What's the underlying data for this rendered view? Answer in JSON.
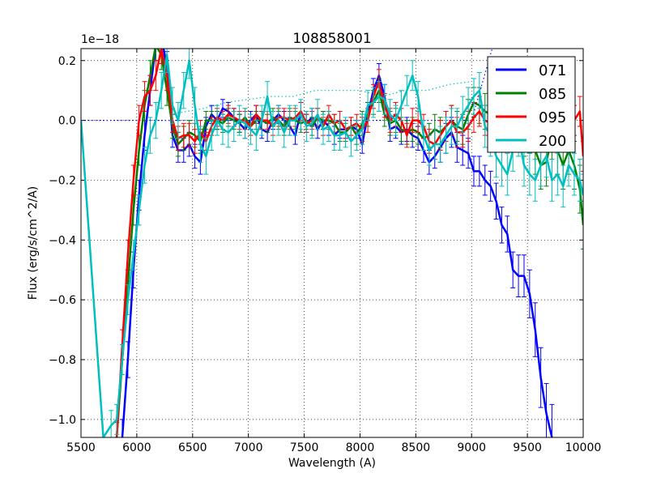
{
  "chart_data": {
    "type": "line",
    "title": "108858001",
    "xlabel": "Wavelength (A)",
    "ylabel": "Flux (erg/s/cm^2/A)",
    "offset_text": "1e−18",
    "xlim": [
      5500,
      10000
    ],
    "ylim": [
      -1.06,
      0.24
    ],
    "xticks": [
      5500,
      6000,
      6500,
      7000,
      7500,
      8000,
      8500,
      9000,
      9500,
      10000
    ],
    "yticks": [
      -1.0,
      -0.8,
      -0.6,
      -0.4,
      -0.2,
      0.0,
      0.2
    ],
    "ytick_labels": [
      "−1.0",
      "−0.8",
      "−0.6",
      "−0.4",
      "−0.2",
      "0.0",
      "0.2"
    ],
    "grid": true,
    "legend_position": "top-right",
    "series": [
      {
        "name": "071",
        "color": "#0000ff",
        "x": [
          5870,
          5920,
          5970,
          6020,
          6070,
          6120,
          6170,
          6220,
          6270,
          6320,
          6370,
          6420,
          6470,
          6520,
          6570,
          6620,
          6670,
          6720,
          6770,
          6820,
          6870,
          6920,
          6970,
          7020,
          7070,
          7120,
          7170,
          7220,
          7270,
          7320,
          7370,
          7420,
          7470,
          7520,
          7570,
          7620,
          7670,
          7720,
          7770,
          7820,
          7870,
          7920,
          7970,
          8020,
          8070,
          8120,
          8170,
          8220,
          8270,
          8320,
          8370,
          8420,
          8470,
          8520,
          8570,
          8620,
          8670,
          8720,
          8770,
          8820,
          8870,
          8920,
          8970,
          9020,
          9070,
          9120,
          9170,
          9220,
          9270,
          9320,
          9370,
          9420,
          9470,
          9520,
          9570,
          9620,
          9670,
          9720
        ],
        "y": [
          -1.06,
          -0.8,
          -0.5,
          -0.25,
          -0.05,
          0.1,
          0.25,
          0.28,
          0.18,
          -0.05,
          -0.1,
          -0.1,
          -0.08,
          -0.12,
          -0.14,
          -0.02,
          0.02,
          0.0,
          0.04,
          0.03,
          0.01,
          -0.01,
          -0.03,
          0.0,
          0.02,
          -0.03,
          -0.04,
          0.0,
          0.02,
          0.0,
          -0.02,
          -0.05,
          0.03,
          -0.01,
          0.01,
          -0.03,
          0.0,
          -0.02,
          -0.05,
          -0.03,
          -0.03,
          -0.02,
          -0.03,
          -0.08,
          0.02,
          0.1,
          0.15,
          0.08,
          -0.03,
          -0.02,
          -0.04,
          -0.03,
          -0.05,
          -0.06,
          -0.1,
          -0.14,
          -0.12,
          -0.09,
          -0.06,
          -0.04,
          -0.09,
          -0.1,
          -0.11,
          -0.17,
          -0.17,
          -0.2,
          -0.22,
          -0.27,
          -0.35,
          -0.38,
          -0.5,
          -0.52,
          -0.52,
          -0.58,
          -0.7,
          -0.86,
          -0.98,
          -1.06
        ],
        "err": [
          0.06,
          0.06,
          0.06,
          0.05,
          0.05,
          0.05,
          0.05,
          0.05,
          0.05,
          0.04,
          0.04,
          0.04,
          0.04,
          0.04,
          0.04,
          0.03,
          0.03,
          0.03,
          0.03,
          0.03,
          0.03,
          0.03,
          0.03,
          0.03,
          0.03,
          0.03,
          0.03,
          0.03,
          0.03,
          0.03,
          0.03,
          0.03,
          0.03,
          0.03,
          0.03,
          0.03,
          0.03,
          0.03,
          0.03,
          0.03,
          0.03,
          0.03,
          0.03,
          0.03,
          0.04,
          0.04,
          0.04,
          0.04,
          0.04,
          0.04,
          0.04,
          0.04,
          0.04,
          0.04,
          0.04,
          0.04,
          0.04,
          0.05,
          0.05,
          0.05,
          0.05,
          0.05,
          0.05,
          0.05,
          0.05,
          0.05,
          0.05,
          0.06,
          0.06,
          0.06,
          0.06,
          0.07,
          0.07,
          0.08,
          0.09,
          0.1,
          0.1,
          0.11
        ]
      },
      {
        "name": "085",
        "color": "#008000",
        "x": [
          5820,
          5870,
          5920,
          5970,
          6020,
          6070,
          6120,
          6170,
          6220,
          6270,
          6320,
          6370,
          6420,
          6470,
          6520,
          6570,
          6620,
          6670,
          6720,
          6770,
          6820,
          6870,
          6920,
          6970,
          7020,
          7070,
          7120,
          7170,
          7220,
          7270,
          7320,
          7370,
          7420,
          7470,
          7520,
          7570,
          7620,
          7670,
          7720,
          7770,
          7820,
          7870,
          7920,
          7970,
          8020,
          8070,
          8120,
          8170,
          8220,
          8270,
          8320,
          8370,
          8420,
          8470,
          8520,
          8570,
          8620,
          8670,
          8720,
          8770,
          8820,
          8870,
          8920,
          8970,
          9020,
          9070,
          9120,
          9170,
          9220,
          9270,
          9320,
          9370,
          9420,
          9470,
          9520,
          9570,
          9620,
          9670,
          9720,
          9770,
          9820,
          9870,
          9920,
          9970,
          10000
        ],
        "y": [
          -1.06,
          -0.8,
          -0.55,
          -0.3,
          -0.1,
          0.05,
          0.15,
          0.25,
          0.22,
          0.1,
          -0.02,
          -0.08,
          -0.06,
          -0.04,
          -0.05,
          -0.07,
          0.0,
          0.0,
          0.0,
          -0.01,
          0.01,
          0.0,
          -0.01,
          0.01,
          -0.02,
          0.0,
          0.0,
          -0.01,
          0.01,
          0.0,
          -0.02,
          0.01,
          0.0,
          -0.01,
          0.0,
          -0.02,
          0.01,
          0.0,
          0.0,
          -0.01,
          -0.04,
          -0.04,
          -0.02,
          -0.05,
          -0.01,
          0.02,
          0.06,
          0.1,
          0.02,
          -0.01,
          0.0,
          -0.03,
          -0.04,
          -0.03,
          -0.04,
          -0.06,
          -0.05,
          -0.03,
          -0.04,
          -0.02,
          0.0,
          -0.02,
          -0.03,
          0.02,
          0.06,
          0.05,
          0.03,
          0.02,
          0.0,
          0.02,
          0.05,
          0.0,
          -0.02,
          -0.05,
          -0.04,
          -0.1,
          -0.15,
          -0.14,
          -0.05,
          -0.1,
          -0.15,
          -0.1,
          -0.15,
          -0.23,
          -0.35
        ],
        "err": [
          0.05,
          0.05,
          0.05,
          0.05,
          0.05,
          0.05,
          0.05,
          0.05,
          0.05,
          0.05,
          0.04,
          0.04,
          0.04,
          0.04,
          0.04,
          0.04,
          0.03,
          0.03,
          0.03,
          0.03,
          0.03,
          0.03,
          0.03,
          0.03,
          0.03,
          0.03,
          0.03,
          0.03,
          0.03,
          0.03,
          0.03,
          0.03,
          0.03,
          0.03,
          0.03,
          0.03,
          0.03,
          0.03,
          0.03,
          0.03,
          0.03,
          0.03,
          0.03,
          0.03,
          0.04,
          0.04,
          0.04,
          0.04,
          0.04,
          0.04,
          0.04,
          0.04,
          0.04,
          0.04,
          0.04,
          0.04,
          0.04,
          0.05,
          0.05,
          0.05,
          0.05,
          0.05,
          0.05,
          0.05,
          0.05,
          0.06,
          0.06,
          0.06,
          0.06,
          0.06,
          0.06,
          0.07,
          0.07,
          0.07,
          0.07,
          0.08,
          0.08,
          0.08,
          0.08,
          0.08,
          0.08,
          0.08,
          0.08,
          0.08,
          0.08
        ]
      },
      {
        "name": "095",
        "color": "#ff0000",
        "x": [
          5820,
          5870,
          5920,
          5970,
          6020,
          6070,
          6120,
          6170,
          6220,
          6270,
          6320,
          6370,
          6420,
          6470,
          6520,
          6570,
          6620,
          6670,
          6720,
          6770,
          6820,
          6870,
          6920,
          6970,
          7020,
          7070,
          7120,
          7170,
          7220,
          7270,
          7320,
          7370,
          7420,
          7470,
          7520,
          7570,
          7620,
          7670,
          7720,
          7770,
          7820,
          7870,
          7920,
          7970,
          8020,
          8070,
          8120,
          8170,
          8220,
          8270,
          8320,
          8370,
          8420,
          8470,
          8520,
          8570,
          8620,
          8670,
          8720,
          8770,
          8820,
          8870,
          8920,
          8970,
          9020,
          9070,
          9120,
          9170,
          9220,
          9270,
          9320,
          9370,
          9420,
          9470,
          9520,
          9570,
          9620,
          9670,
          9720,
          9770,
          9820,
          9870,
          9920,
          9970,
          10000
        ],
        "y": [
          -1.06,
          -0.75,
          -0.45,
          -0.2,
          0.0,
          0.08,
          0.1,
          0.15,
          0.24,
          0.15,
          0.0,
          -0.06,
          -0.05,
          -0.05,
          -0.07,
          -0.04,
          -0.07,
          -0.02,
          0.01,
          0.0,
          0.02,
          0.01,
          0.0,
          0.0,
          -0.02,
          0.02,
          0.0,
          0.0,
          -0.02,
          0.01,
          0.01,
          0.0,
          0.01,
          0.03,
          -0.01,
          0.0,
          0.01,
          -0.02,
          0.02,
          -0.01,
          0.0,
          -0.03,
          -0.02,
          -0.01,
          -0.03,
          0.0,
          0.08,
          0.13,
          0.05,
          0.0,
          0.02,
          0.0,
          -0.05,
          0.0,
          0.0,
          -0.02,
          -0.07,
          -0.08,
          -0.05,
          -0.02,
          0.0,
          -0.04,
          -0.04,
          -0.02,
          0.01,
          0.03,
          0.0,
          -0.01,
          -0.05,
          -0.02,
          0.0,
          -0.02,
          -0.05,
          -0.02,
          -0.04,
          -0.01,
          0.0,
          0.02,
          0.03,
          0.02,
          -0.01,
          -0.05,
          0.0,
          0.03,
          -0.12
        ],
        "err": [
          0.05,
          0.05,
          0.05,
          0.05,
          0.05,
          0.05,
          0.05,
          0.05,
          0.05,
          0.05,
          0.04,
          0.04,
          0.04,
          0.04,
          0.04,
          0.04,
          0.03,
          0.03,
          0.03,
          0.03,
          0.03,
          0.03,
          0.03,
          0.03,
          0.03,
          0.03,
          0.03,
          0.03,
          0.03,
          0.03,
          0.03,
          0.03,
          0.03,
          0.03,
          0.03,
          0.03,
          0.03,
          0.03,
          0.03,
          0.03,
          0.03,
          0.03,
          0.03,
          0.03,
          0.04,
          0.04,
          0.04,
          0.04,
          0.04,
          0.04,
          0.04,
          0.04,
          0.04,
          0.04,
          0.04,
          0.04,
          0.04,
          0.05,
          0.05,
          0.05,
          0.05,
          0.05,
          0.05,
          0.05,
          0.05,
          0.05,
          0.05,
          0.05,
          0.05,
          0.05,
          0.05,
          0.05,
          0.05,
          0.05,
          0.05,
          0.05,
          0.05,
          0.05,
          0.05,
          0.05,
          0.05,
          0.05,
          0.05,
          0.05,
          0.05
        ]
      },
      {
        "name": "200",
        "color": "#00bfbf",
        "x": [
          5500,
          5700,
          5770,
          5820,
          5870,
          5920,
          5970,
          6020,
          6070,
          6120,
          6170,
          6220,
          6270,
          6320,
          6370,
          6420,
          6470,
          6520,
          6570,
          6620,
          6670,
          6720,
          6770,
          6820,
          6870,
          6920,
          6970,
          7020,
          7070,
          7120,
          7170,
          7220,
          7270,
          7320,
          7370,
          7420,
          7470,
          7520,
          7570,
          7620,
          7670,
          7720,
          7770,
          7820,
          7870,
          7920,
          7970,
          8020,
          8070,
          8120,
          8170,
          8220,
          8270,
          8320,
          8370,
          8420,
          8470,
          8520,
          8570,
          8620,
          8670,
          8720,
          8770,
          8820,
          8870,
          8920,
          8970,
          9020,
          9070,
          9120,
          9170,
          9220,
          9270,
          9320,
          9370,
          9420,
          9470,
          9520,
          9570,
          9620,
          9670,
          9720,
          9770,
          9820,
          9870,
          9920,
          9970,
          10000
        ],
        "y": [
          0.0,
          -1.06,
          -1.02,
          -1.0,
          -0.8,
          -0.6,
          -0.45,
          -0.3,
          -0.15,
          -0.05,
          0.0,
          0.1,
          0.22,
          0.05,
          0.0,
          0.1,
          0.2,
          0.05,
          -0.08,
          -0.12,
          -0.05,
          0.0,
          -0.03,
          -0.04,
          -0.02,
          0.0,
          -0.01,
          -0.03,
          -0.05,
          0.0,
          0.08,
          -0.02,
          0.0,
          -0.04,
          0.0,
          0.0,
          0.02,
          -0.02,
          -0.01,
          0.02,
          -0.03,
          -0.02,
          -0.05,
          -0.05,
          -0.04,
          -0.07,
          -0.05,
          -0.03,
          0.05,
          0.06,
          0.08,
          0.07,
          0.02,
          0.0,
          0.05,
          0.1,
          0.15,
          0.08,
          -0.05,
          -0.1,
          -0.08,
          -0.08,
          -0.05,
          -0.02,
          -0.02,
          0.02,
          0.05,
          0.08,
          0.1,
          -0.02,
          -0.05,
          -0.12,
          -0.15,
          -0.18,
          -0.1,
          -0.05,
          -0.15,
          -0.18,
          -0.2,
          -0.15,
          -0.12,
          -0.2,
          -0.18,
          -0.22,
          -0.15,
          -0.18,
          -0.2,
          -0.25
        ],
        "err": [
          0.0,
          0.0,
          0.05,
          0.05,
          0.05,
          0.05,
          0.05,
          0.05,
          0.06,
          0.06,
          0.06,
          0.06,
          0.06,
          0.06,
          0.06,
          0.06,
          0.06,
          0.06,
          0.06,
          0.06,
          0.05,
          0.05,
          0.05,
          0.05,
          0.05,
          0.05,
          0.05,
          0.05,
          0.05,
          0.05,
          0.05,
          0.05,
          0.05,
          0.05,
          0.05,
          0.05,
          0.05,
          0.05,
          0.05,
          0.05,
          0.05,
          0.05,
          0.05,
          0.05,
          0.05,
          0.05,
          0.05,
          0.05,
          0.05,
          0.05,
          0.05,
          0.05,
          0.05,
          0.05,
          0.05,
          0.05,
          0.05,
          0.05,
          0.05,
          0.05,
          0.05,
          0.06,
          0.06,
          0.06,
          0.06,
          0.06,
          0.06,
          0.06,
          0.06,
          0.07,
          0.07,
          0.07,
          0.07,
          0.07,
          0.07,
          0.07,
          0.07,
          0.07,
          0.07,
          0.07,
          0.07,
          0.07,
          0.07,
          0.07,
          0.07,
          0.07,
          0.07,
          0.07
        ]
      }
    ],
    "reference_lines": [
      {
        "name": "template-dotted-blue",
        "color": "#0000ff",
        "style": "dotted",
        "x": [
          5500,
          6000,
          9000,
          9200
        ],
        "y": [
          0.0,
          0.0,
          0.0,
          0.26
        ]
      },
      {
        "name": "template-dotted-cyan",
        "color": "#00bfbf",
        "style": "dotted",
        "x": [
          6300,
          6600,
          6800,
          7000,
          7200,
          7400,
          7600,
          7800,
          8000,
          8200,
          8400,
          8600,
          8800,
          9000
        ],
        "y": [
          0.02,
          0.04,
          0.06,
          0.07,
          0.08,
          0.08,
          0.1,
          0.1,
          0.1,
          0.08,
          0.1,
          0.1,
          0.12,
          0.13
        ]
      }
    ]
  }
}
